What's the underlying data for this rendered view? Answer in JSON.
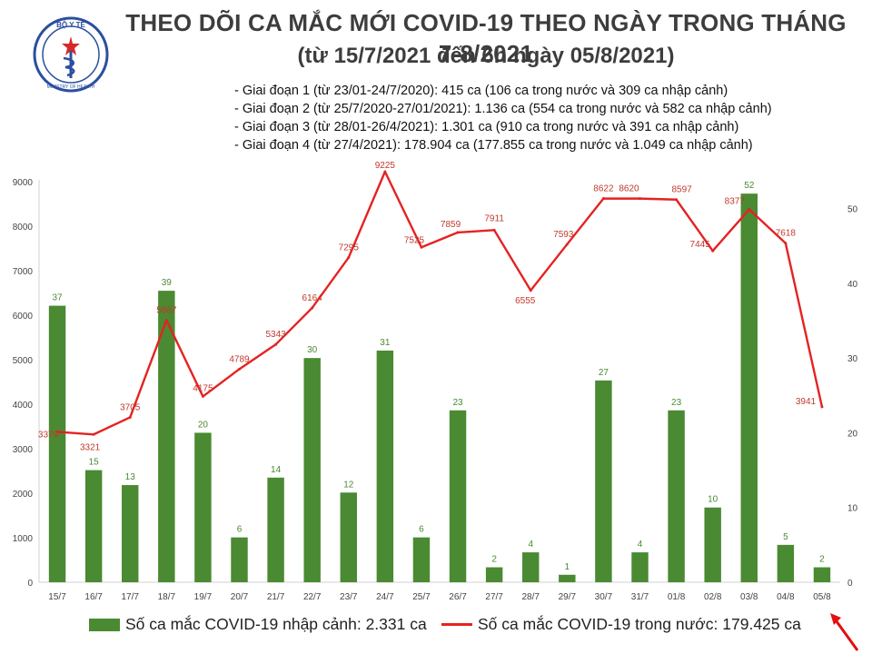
{
  "header": {
    "title": "THEO DÕI CA MẮC MỚI COVID-19 THEO NGÀY TRONG THÁNG 7-8/2021",
    "subtitle": "(từ 15/7/2021 đến 6h ngày 05/8/2021)",
    "logo_text_top": "BỘ Y TẾ",
    "logo_text_bottom": "MINISTRY OF HEALTH",
    "phases": [
      "- Giai đoạn 1 (từ 23/01-24/7/2020): 415 ca (106 ca trong nước và 309 ca nhập cảnh)",
      "- Giai đoạn 2 (từ 25/7/2020-27/01/2021): 1.136 ca (554 ca trong nước và 582 ca nhập cảnh)",
      "- Giai đoạn 3 (từ 28/01-26/4/2021): 1.301 ca (910 ca trong nước và 391 ca nhập cảnh)",
      "- Giai đoạn 4 (từ 27/4/2021): 178.904 ca (177.855 ca trong nước và 1.049 ca nhập cảnh)"
    ]
  },
  "colors": {
    "bar": "#4a8a32",
    "line": "#e52222",
    "axis": "#d0d0d0",
    "bar_label": "#4a8a32",
    "line_label": "#c0392b"
  },
  "chart_data": {
    "type": "bar+line",
    "categories": [
      "15/7",
      "16/7",
      "17/7",
      "18/7",
      "19/7",
      "20/7",
      "21/7",
      "22/7",
      "23/7",
      "24/7",
      "25/7",
      "26/7",
      "27/7",
      "28/7",
      "29/7",
      "30/7",
      "31/7",
      "01/8",
      "02/8",
      "03/8",
      "04/8",
      "05/8"
    ],
    "series": [
      {
        "name": "Số ca mắc COVID-19 nhập cảnh: 2.331 ca",
        "type": "bar",
        "axis": "right",
        "values": [
          37,
          15,
          13,
          39,
          20,
          6,
          14,
          30,
          12,
          31,
          6,
          23,
          2,
          4,
          1,
          27,
          4,
          23,
          10,
          52,
          5,
          2
        ]
      },
      {
        "name": "Số ca mắc COVID-19 trong nước: 179.425 ca",
        "type": "line",
        "axis": "left",
        "values": [
          3379,
          3321,
          3705,
          5887,
          4175,
          4789,
          5343,
          6164,
          7295,
          9225,
          7525,
          7859,
          7911,
          6555,
          7593,
          8622,
          8620,
          8597,
          7445,
          8377,
          7618,
          3941
        ]
      }
    ],
    "left_axis": {
      "min": 0,
      "max": 9000,
      "ticks": [
        0,
        1000,
        2000,
        3000,
        4000,
        5000,
        6000,
        7000,
        8000,
        9000
      ]
    },
    "right_axis": {
      "min": 0,
      "max": 53.6,
      "ticks": [
        0,
        10,
        20,
        30,
        40,
        50
      ]
    },
    "grid": false,
    "legend_position": "bottom"
  }
}
